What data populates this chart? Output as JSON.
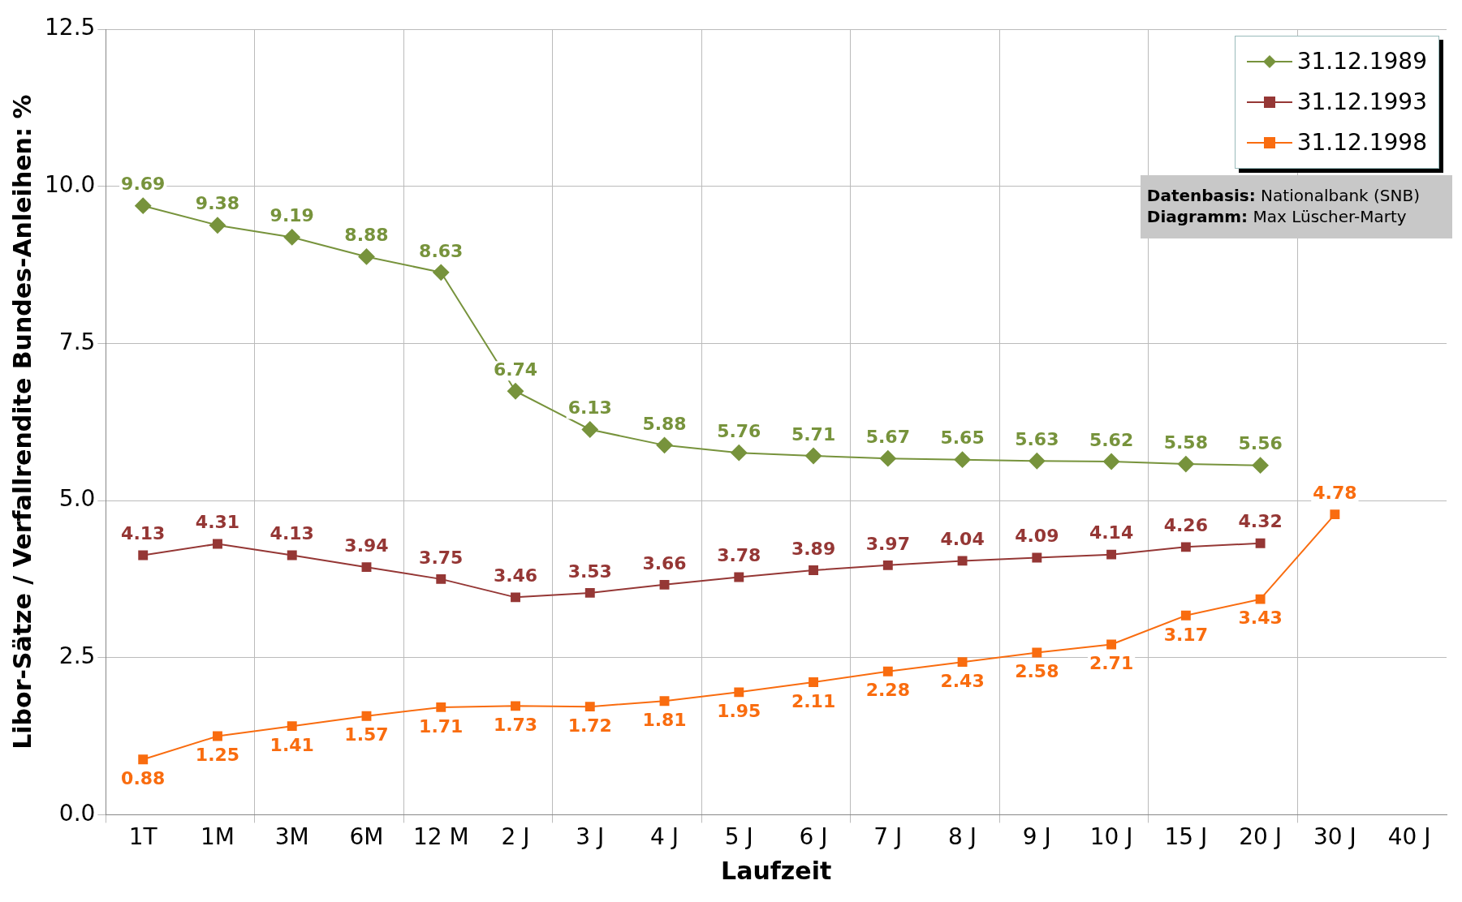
{
  "chart_data": {
    "type": "line",
    "xlabel": "Laufzeit",
    "ylabel": "Libor-Sätze / Verfallrendite Bundes-Anleihen: %",
    "categories": [
      "1T",
      "1M",
      "3M",
      "6M",
      "12 M",
      "2 J",
      "3 J",
      "4 J",
      "5 J",
      "6 J",
      "7 J",
      "8 J",
      "9 J",
      "10 J",
      "15 J",
      "20 J",
      "30 J",
      "40 J"
    ],
    "series": [
      {
        "name": "31.12.1989",
        "color": "#77933c",
        "marker": "diamond",
        "values": [
          9.69,
          9.38,
          9.19,
          8.88,
          8.63,
          6.74,
          6.13,
          5.88,
          5.76,
          5.71,
          5.67,
          5.65,
          5.63,
          5.62,
          5.58,
          5.56,
          null,
          null
        ]
      },
      {
        "name": "31.12.1993",
        "color": "#953735",
        "marker": "square",
        "values": [
          4.13,
          4.31,
          4.13,
          3.94,
          3.75,
          3.46,
          3.53,
          3.66,
          3.78,
          3.89,
          3.97,
          4.04,
          4.09,
          4.14,
          4.26,
          4.32,
          null,
          null
        ]
      },
      {
        "name": "31.12.1998",
        "color": "#f96c0f",
        "marker": "square",
        "values": [
          0.88,
          1.25,
          1.41,
          1.57,
          1.71,
          1.73,
          1.72,
          1.81,
          1.95,
          2.11,
          2.28,
          2.43,
          2.58,
          2.71,
          3.17,
          3.43,
          4.78,
          null
        ]
      }
    ],
    "ylim": [
      0,
      12.5
    ],
    "yticks": [
      {
        "value": 0,
        "label": "0.0"
      },
      {
        "value": 2.5,
        "label": "2.5"
      },
      {
        "value": 5,
        "label": "5.0"
      },
      {
        "value": 7.5,
        "label": "7.5"
      },
      {
        "value": 10,
        "label": "10.0"
      },
      {
        "value": 12.5,
        "label": "12.5"
      }
    ],
    "grid": true,
    "legend": "top right",
    "data_labels": true,
    "line_style": "solid",
    "annotations": [
      "Datenbasis: Nationalbank (SNB)",
      "Diagramm: Max Lüscher-Marty"
    ]
  }
}
